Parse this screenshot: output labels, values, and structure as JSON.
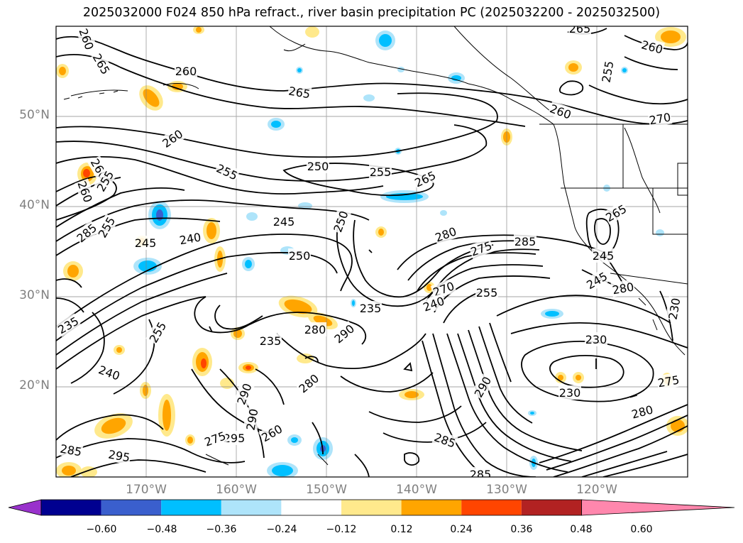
{
  "title": "2025032000 F024 850 hPa refract., river basin precipitation PC (2025032200 - 2025032500)",
  "latitude_labels": [
    "50°N",
    "40°N",
    "30°N",
    "20°N"
  ],
  "longitude_labels": [
    "170°W",
    "160°W",
    "150°W",
    "140°W",
    "130°W",
    "120°W"
  ],
  "colorbar": {
    "colors": [
      "#9932CC",
      "#000090",
      "#3A5FCD",
      "#00BFFF",
      "#AEE4FA",
      "#FFFFFF",
      "#FFE98C",
      "#FFA500",
      "#FF4500",
      "#B22222",
      "#FF87AD"
    ],
    "tick_labels": [
      "−0.60",
      "−0.48",
      "−0.36",
      "−0.24",
      "−0.12",
      "0.12",
      "0.24",
      "0.36",
      "0.48",
      "0.60"
    ]
  },
  "contour_labels": [
    "260",
    "265",
    "260",
    "265",
    "265",
    "260",
    "255",
    "260",
    "270",
    "260",
    "255",
    "250",
    "255",
    "265",
    "260",
    "260",
    "255",
    "245",
    "250",
    "255",
    "285",
    "250",
    "245",
    "240",
    "265",
    "285",
    "275",
    "280",
    "270",
    "240",
    "255",
    "235",
    "235",
    "245",
    "280",
    "245",
    "280",
    "255",
    "235",
    "290",
    "230",
    "240",
    "230",
    "280",
    "275",
    "290",
    "280",
    "260",
    "285",
    "295",
    "290",
    "290",
    "295",
    "285",
    "285",
    "275",
    "230"
  ],
  "colors": {
    "contour": "#000000",
    "coast": "#000000",
    "grid": "#808080",
    "positive_fill": "#FFA500",
    "negative_fill": "#00BFFF"
  }
}
